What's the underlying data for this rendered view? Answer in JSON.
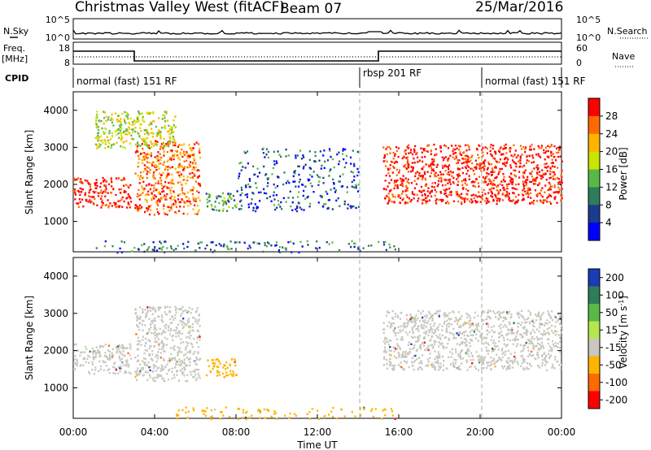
{
  "header": {
    "station": "Christmas Valley West (fitACF)",
    "beam": "Beam 07",
    "date": "25/Mar/2016"
  },
  "panel_labels": {
    "nsky": "N.Sky",
    "nsearch": "N.Search",
    "freq": "Freq.",
    "freq_unit": "[MHz]",
    "nave": "Nave",
    "cpid": "CPID",
    "noise_ticks_left": [
      "10^5",
      "10^0"
    ],
    "noise_ticks_right": [
      "10^5",
      "10^0"
    ],
    "freq_ticks": [
      "18",
      "8"
    ],
    "nave_ticks": [
      "60",
      "0"
    ]
  },
  "cpid_segments": [
    {
      "label": "normal (fast) 151 RF",
      "start_hour": 0,
      "end_hour": 14
    },
    {
      "label": "rbsp 201 RF",
      "start_hour": 14,
      "end_hour": 20
    },
    {
      "label": "normal (fast) 151 RF",
      "start_hour": 20,
      "end_hour": 24
    }
  ],
  "chart_data": [
    {
      "type": "heatmap",
      "quantity": "Power",
      "xlabel": "Time UT",
      "ylabel": "Slant Range [km]",
      "colorbar_label": "Power [dB]",
      "xlim": [
        0,
        24
      ],
      "ylim": [
        180,
        4500
      ],
      "x_ticks": [
        "00:00",
        "04:00",
        "08:00",
        "12:00",
        "16:00",
        "20:00",
        "00:00"
      ],
      "y_ticks": [
        "1000",
        "2000",
        "3000",
        "4000"
      ],
      "colorbar_ticks": [
        "28",
        "24",
        "20",
        "16",
        "12",
        "8",
        "4"
      ],
      "colors": [
        "#ff0000",
        "#ff6a00",
        "#ffb400",
        "#c8e600",
        "#5ab946",
        "#2e7d5a",
        "#1a3c8c",
        "#0000ff"
      ],
      "echo_regions": [
        {
          "name": "main band",
          "x": [
            0.0,
            2.8
          ],
          "range_km": [
            1400,
            2200
          ],
          "db": 28
        },
        {
          "name": "rising arc",
          "x": [
            3.0,
            6.2
          ],
          "range_km": [
            1200,
            3200
          ],
          "db": 24
        },
        {
          "name": "upper patch",
          "x": [
            1.0,
            5.0
          ],
          "range_km": [
            3000,
            4000
          ],
          "db": 16
        },
        {
          "name": "mid patch",
          "x": [
            6.5,
            8.0
          ],
          "range_km": [
            1300,
            1800
          ],
          "db": 10
        },
        {
          "name": "scattered",
          "x": [
            8.0,
            14.0
          ],
          "range_km": [
            1300,
            3000
          ],
          "db": 6
        },
        {
          "name": "afternoon band",
          "x": [
            15.2,
            24.0
          ],
          "range_km": [
            1500,
            3100
          ],
          "db": 28
        },
        {
          "name": "near-range clutter",
          "x": [
            1.0,
            16.0
          ],
          "range_km": [
            180,
            500
          ],
          "db": 8
        }
      ]
    },
    {
      "type": "heatmap",
      "quantity": "Velocity",
      "xlabel": "Time UT",
      "ylabel": "Slant Range [km]",
      "colorbar_label": "Velocity [m s^-1]",
      "xlim": [
        0,
        24
      ],
      "ylim": [
        180,
        4500
      ],
      "x_ticks": [
        "00:00",
        "04:00",
        "08:00",
        "12:00",
        "16:00",
        "20:00",
        "00:00"
      ],
      "y_ticks": [
        "1000",
        "2000",
        "3000",
        "4000"
      ],
      "colorbar_ticks": [
        "200",
        "100",
        "50",
        "15",
        "-15",
        "-50",
        "-100",
        "-200"
      ],
      "colors": [
        "#1a3cb4",
        "#2e7d5a",
        "#5ab946",
        "#b4e650",
        "#c8c8c0",
        "#ffb400",
        "#ff6a00",
        "#ff0000"
      ],
      "echo_regions": [
        {
          "name": "main band",
          "x": [
            0.0,
            2.8
          ],
          "range_km": [
            1400,
            2200
          ],
          "velocity": 0
        },
        {
          "name": "rising arc",
          "x": [
            3.0,
            6.2
          ],
          "range_km": [
            1200,
            3200
          ],
          "velocity": 0
        },
        {
          "name": "orange patch",
          "x": [
            6.5,
            8.0
          ],
          "range_km": [
            1300,
            1800
          ],
          "velocity": -40
        },
        {
          "name": "afternoon band",
          "x": [
            15.2,
            24.0
          ],
          "range_km": [
            1500,
            3100
          ],
          "velocity": 0
        },
        {
          "name": "near-range",
          "x": [
            5.0,
            16.0
          ],
          "range_km": [
            180,
            500
          ],
          "velocity": -40
        }
      ]
    }
  ]
}
